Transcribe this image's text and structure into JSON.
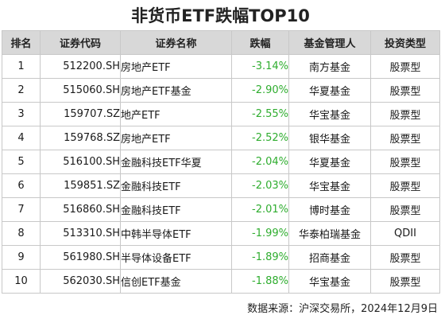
{
  "title": "非货币ETF跌幅TOP10",
  "columns": [
    "排名",
    "证券代码",
    "证券名称",
    "跌幅",
    "基金管理人",
    "投资类型"
  ],
  "colors": {
    "negative": "#2fad2f",
    "header_bg": "#d8d8d8",
    "border": "#c8c8c8"
  },
  "rows": [
    {
      "rank": "1",
      "code": "512200.SH",
      "name": "房地产ETF",
      "change": "-3.14%",
      "manager": "南方基金",
      "type": "股票型"
    },
    {
      "rank": "2",
      "code": "515060.SH",
      "name": "房地产ETF基金",
      "change": "-2.90%",
      "manager": "华夏基金",
      "type": "股票型"
    },
    {
      "rank": "3",
      "code": "159707.SZ",
      "name": "地产ETF",
      "change": "-2.55%",
      "manager": "华宝基金",
      "type": "股票型"
    },
    {
      "rank": "4",
      "code": "159768.SZ",
      "name": "房地产ETF",
      "change": "-2.52%",
      "manager": "银华基金",
      "type": "股票型"
    },
    {
      "rank": "5",
      "code": "516100.SH",
      "name": "金融科技ETF华夏",
      "change": "-2.04%",
      "manager": "华夏基金",
      "type": "股票型"
    },
    {
      "rank": "6",
      "code": "159851.SZ",
      "name": "金融科技ETF",
      "change": "-2.03%",
      "manager": "华宝基金",
      "type": "股票型"
    },
    {
      "rank": "7",
      "code": "516860.SH",
      "name": "金融科技ETF",
      "change": "-2.01%",
      "manager": "博时基金",
      "type": "股票型"
    },
    {
      "rank": "8",
      "code": "513310.SH",
      "name": "中韩半导体ETF",
      "change": "-1.99%",
      "manager": "华泰柏瑞基金",
      "type": "QDII"
    },
    {
      "rank": "9",
      "code": "561980.SH",
      "name": "半导体设备ETF",
      "change": "-1.89%",
      "manager": "招商基金",
      "type": "股票型"
    },
    {
      "rank": "10",
      "code": "562030.SH",
      "name": "信创ETF基金",
      "change": "-1.88%",
      "manager": "华宝基金",
      "type": "股票型"
    }
  ],
  "footer": "数据来源：沪深交易所，2024年12月9日"
}
